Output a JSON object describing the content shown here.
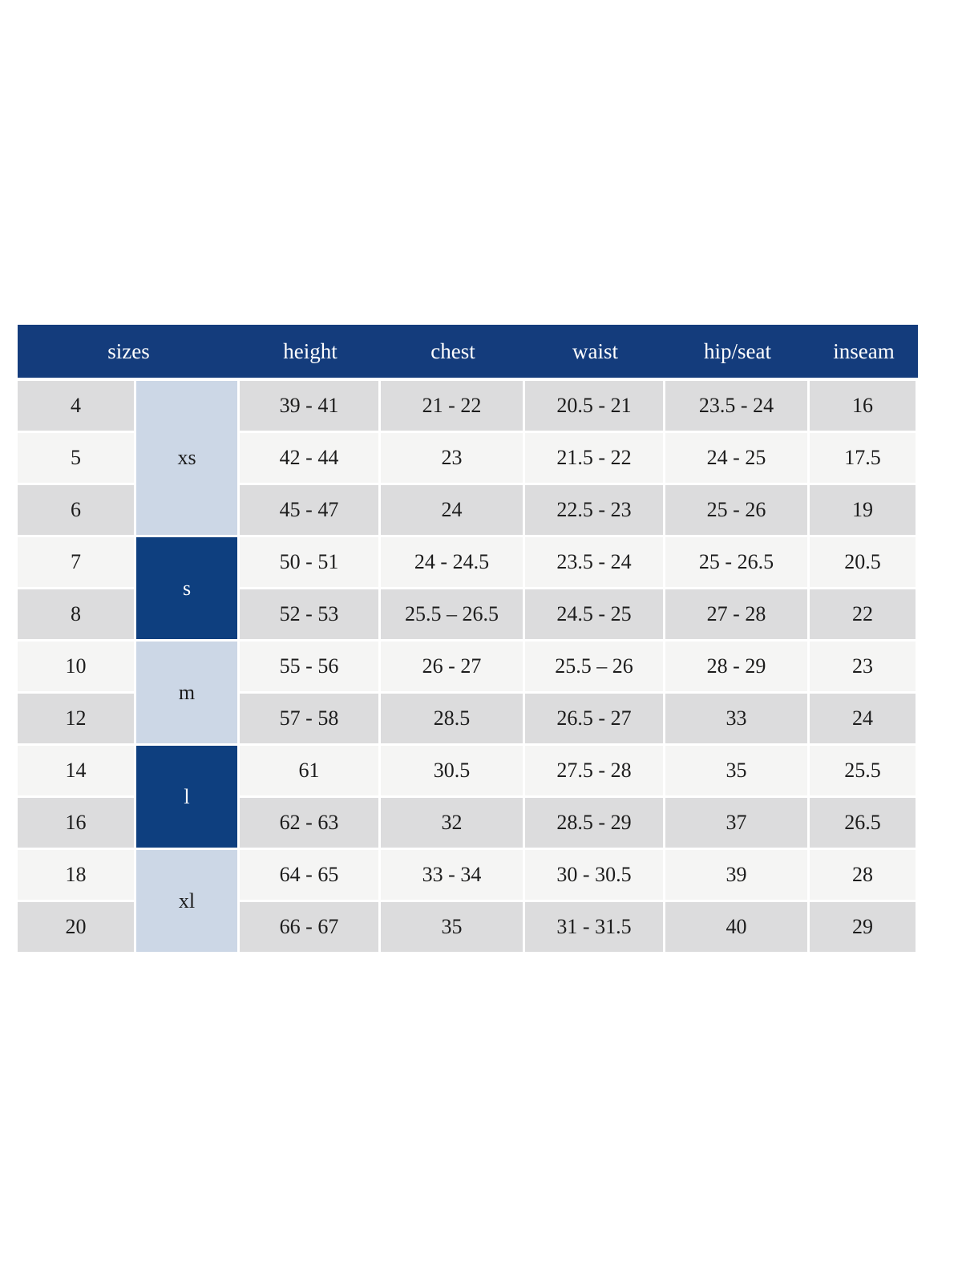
{
  "colors": {
    "header_bg": "#143c7c",
    "group_dark_bg": "#0e3f7f",
    "group_light_bg": "#ccd7e6",
    "row_dark_bg": "#dcdcdd",
    "row_light_bg": "#f5f5f4",
    "header_text": "#ffffff",
    "body_text": "#1c1c1c"
  },
  "chart_data": {
    "type": "table",
    "columns": [
      {
        "key": "sizes",
        "label": "sizes",
        "colspan": 2
      },
      {
        "key": "height",
        "label": "height",
        "colspan": 1
      },
      {
        "key": "chest",
        "label": "chest",
        "colspan": 1
      },
      {
        "key": "waist",
        "label": "waist",
        "colspan": 1
      },
      {
        "key": "hip_seat",
        "label": "hip/seat",
        "colspan": 1
      },
      {
        "key": "inseam",
        "label": "inseam",
        "colspan": 1
      }
    ],
    "groups": [
      {
        "label": "xs",
        "span": 3,
        "variant": "light"
      },
      {
        "label": "s",
        "span": 2,
        "variant": "dark"
      },
      {
        "label": "m",
        "span": 2,
        "variant": "light"
      },
      {
        "label": "l",
        "span": 2,
        "variant": "dark"
      },
      {
        "label": "xl",
        "span": 2,
        "variant": "light"
      }
    ],
    "rows": [
      {
        "size": "4",
        "height": "39 - 41",
        "chest": "21 - 22",
        "waist": "20.5 - 21",
        "hip_seat": "23.5 - 24",
        "inseam": "16"
      },
      {
        "size": "5",
        "height": "42 - 44",
        "chest": "23",
        "waist": "21.5 - 22",
        "hip_seat": "24 - 25",
        "inseam": "17.5"
      },
      {
        "size": "6",
        "height": "45 - 47",
        "chest": "24",
        "waist": "22.5 - 23",
        "hip_seat": "25 - 26",
        "inseam": "19"
      },
      {
        "size": "7",
        "height": "50 - 51",
        "chest": "24 - 24.5",
        "waist": "23.5 - 24",
        "hip_seat": "25 - 26.5",
        "inseam": "20.5"
      },
      {
        "size": "8",
        "height": "52 - 53",
        "chest": "25.5 – 26.5",
        "waist": "24.5 - 25",
        "hip_seat": "27 - 28",
        "inseam": "22"
      },
      {
        "size": "10",
        "height": "55 - 56",
        "chest": "26 - 27",
        "waist": "25.5 – 26",
        "hip_seat": "28 - 29",
        "inseam": "23"
      },
      {
        "size": "12",
        "height": "57 - 58",
        "chest": "28.5",
        "waist": "26.5 - 27",
        "hip_seat": "33",
        "inseam": "24"
      },
      {
        "size": "14",
        "height": "61",
        "chest": "30.5",
        "waist": "27.5 - 28",
        "hip_seat": "35",
        "inseam": "25.5"
      },
      {
        "size": "16",
        "height": "62 - 63",
        "chest": "32",
        "waist": "28.5 - 29",
        "hip_seat": "37",
        "inseam": "26.5"
      },
      {
        "size": "18",
        "height": "64 - 65",
        "chest": "33 - 34",
        "waist": "30 - 30.5",
        "hip_seat": "39",
        "inseam": "28"
      },
      {
        "size": "20",
        "height": "66 - 67",
        "chest": "35",
        "waist": "31 - 31.5",
        "hip_seat": "40",
        "inseam": "29"
      }
    ]
  }
}
